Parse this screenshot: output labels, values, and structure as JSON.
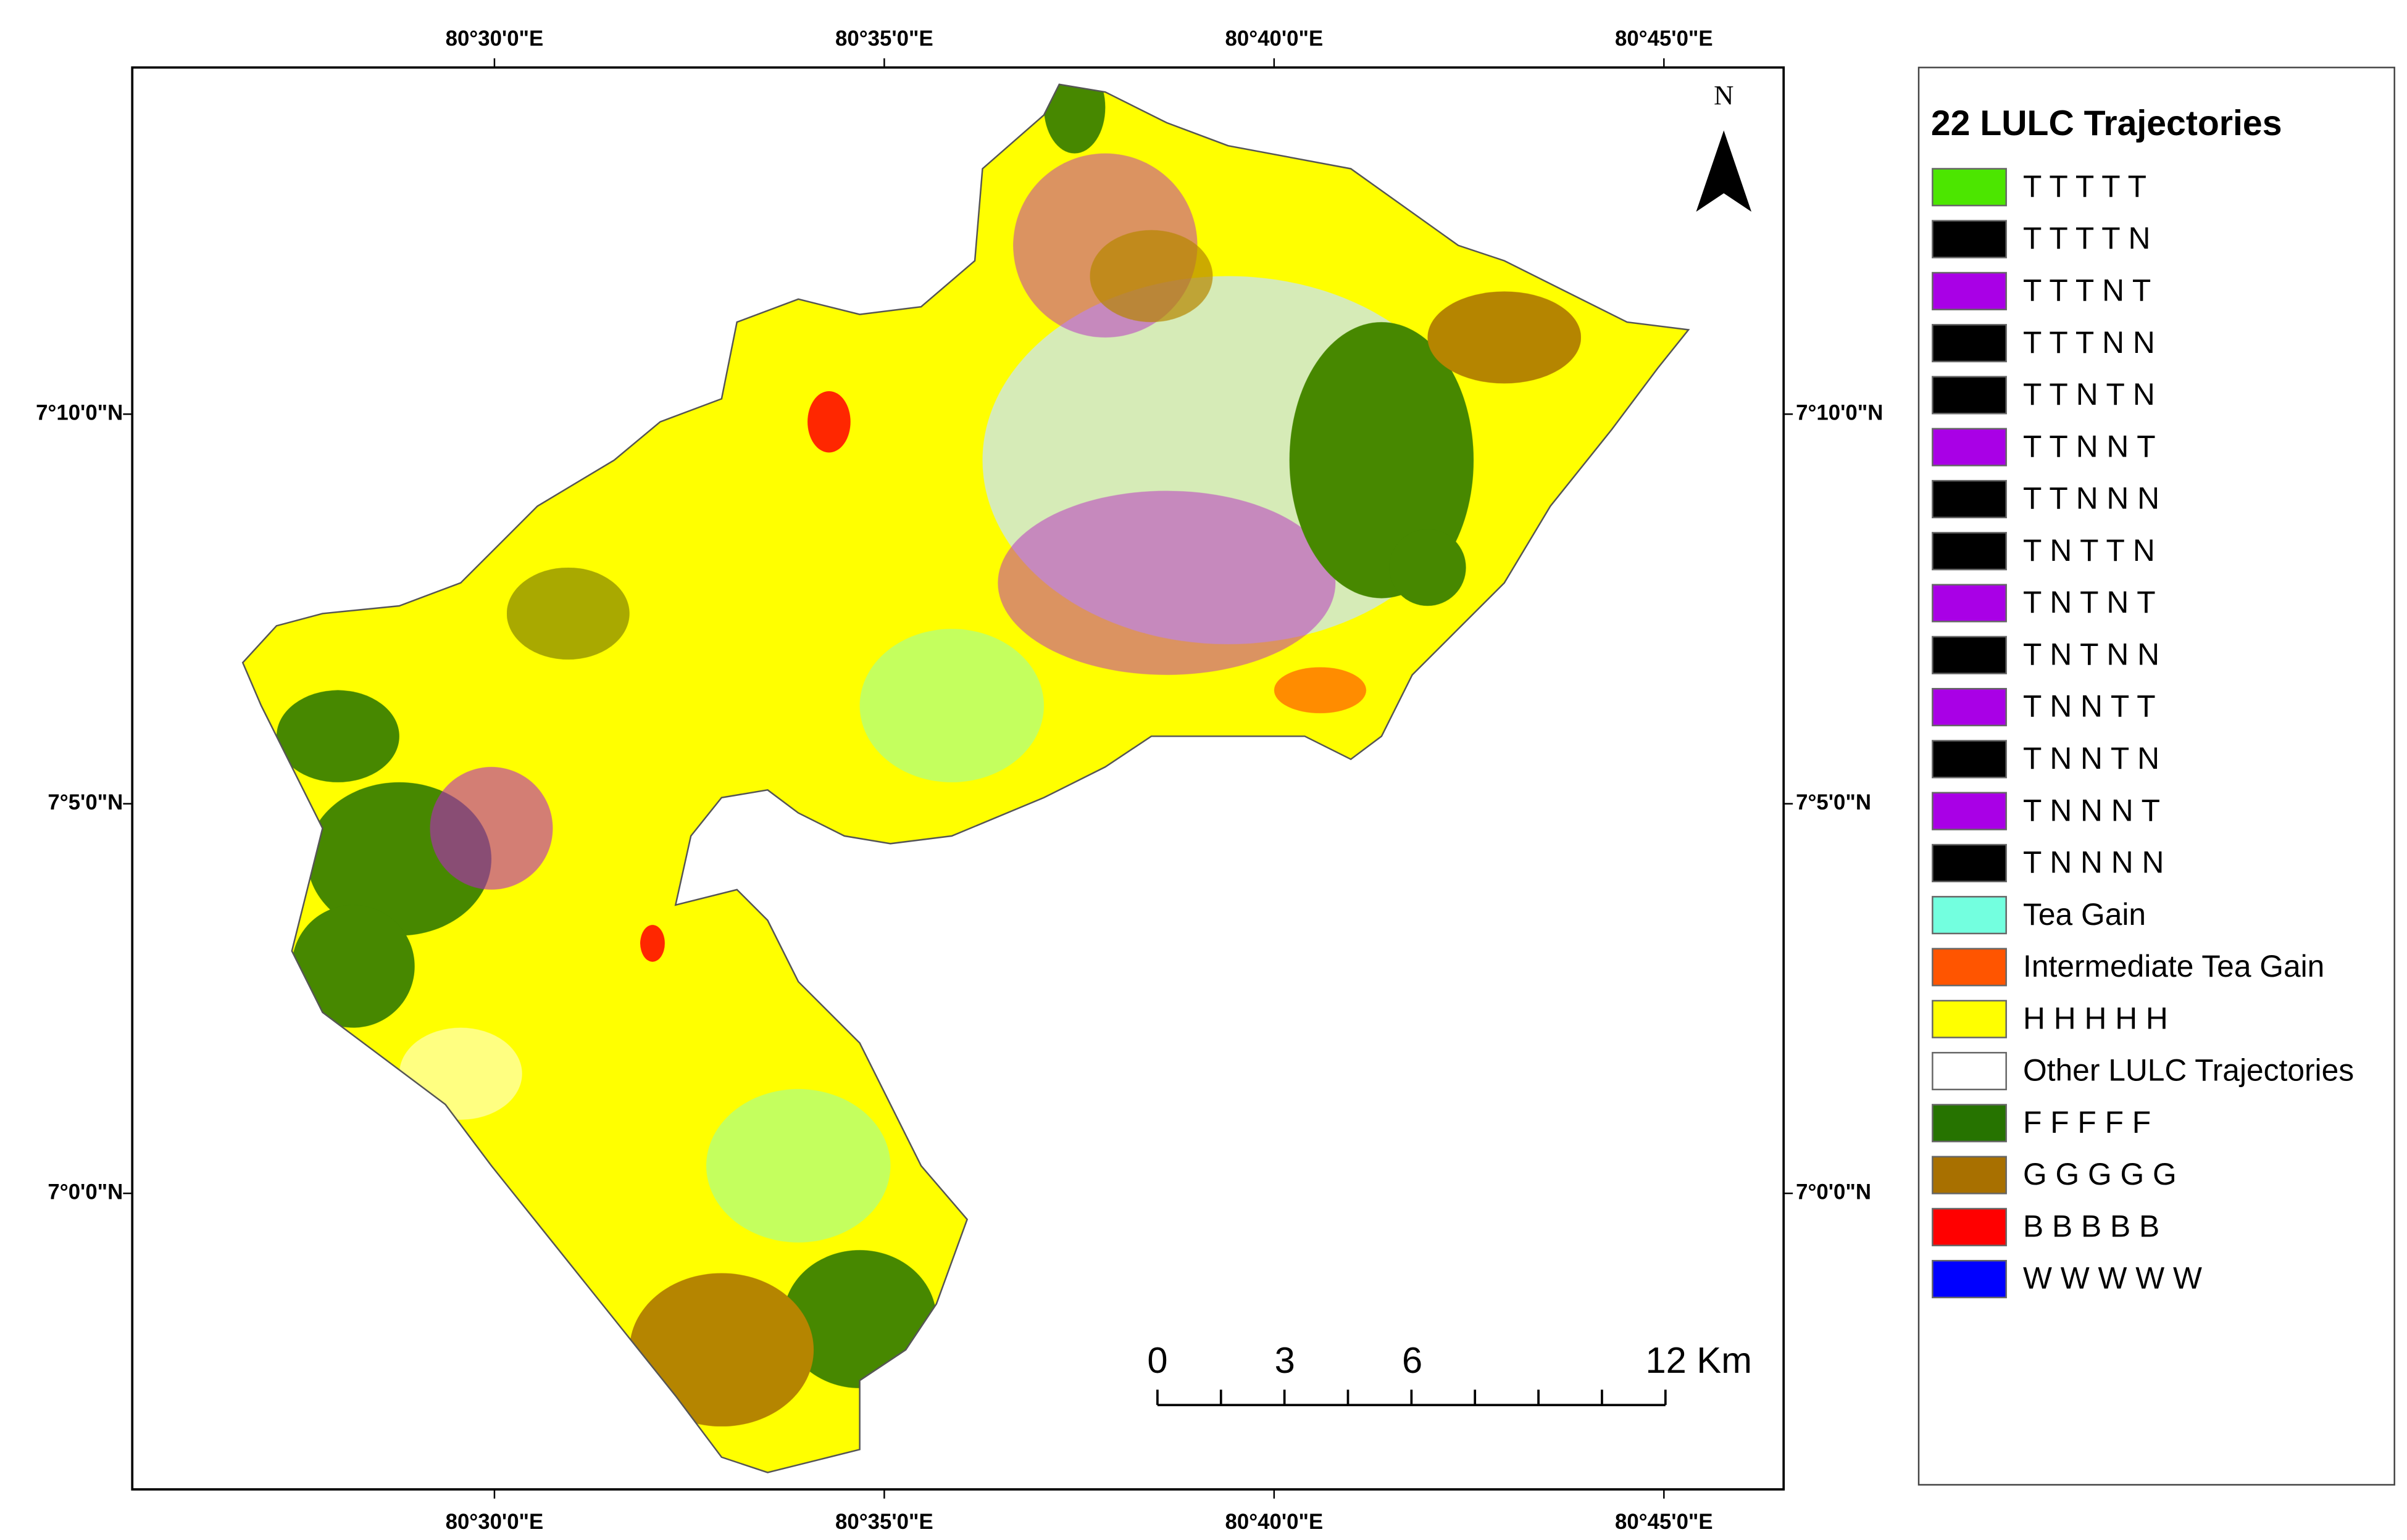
{
  "map": {
    "north": "N",
    "top_labels": [
      "80°30'0\"E",
      "80°35'0\"E",
      "80°40'0\"E",
      "80°45'0\"E"
    ],
    "bottom_labels": [
      "80°30'0\"E",
      "80°35'0\"E",
      "80°40'0\"E",
      "80°45'0\"E"
    ],
    "left_labels": [
      "7°10'0\"N",
      "7°5'0\"N",
      "7°0'0\"N"
    ],
    "right_labels": [
      "7°10'0\"N",
      "7°5'0\"N",
      "7°0'0\"N"
    ],
    "scale_bar": [
      "0",
      "3",
      "6",
      "12 Km"
    ]
  },
  "legend": {
    "title": "22 LULC Trajectories",
    "items": [
      {
        "label": "T T T T T",
        "color": "#4ce600"
      },
      {
        "label": "T T T T N",
        "color": "#000000"
      },
      {
        "label": "T T T N T",
        "color": "#a900e6"
      },
      {
        "label": "T T T N N",
        "color": "#000000"
      },
      {
        "label": "T T N T N",
        "color": "#000000"
      },
      {
        "label": "T T N N T",
        "color": "#a900e6"
      },
      {
        "label": "T T N N N",
        "color": "#000000"
      },
      {
        "label": "T N T T N",
        "color": "#000000"
      },
      {
        "label": "T N T N T",
        "color": "#a900e6"
      },
      {
        "label": "T N T N N",
        "color": "#000000"
      },
      {
        "label": "T N N T T",
        "color": "#a900e6"
      },
      {
        "label": "T N N T N",
        "color": "#000000"
      },
      {
        "label": "T N N N T",
        "color": "#a900e6"
      },
      {
        "label": "T N N N N",
        "color": "#000000"
      },
      {
        "label": "Tea Gain",
        "color": "#73ffdf"
      },
      {
        "label": "Intermediate Tea Gain",
        "color": "#ff5500"
      },
      {
        "label": "H H H H H",
        "color": "#ffff00"
      },
      {
        "label": "Other LULC Trajectories",
        "color": "#ffffff"
      },
      {
        "label": "F F F F F",
        "color": "#267300"
      },
      {
        "label": "G G G G G",
        "color": "#a87000"
      },
      {
        "label": "B B B B B",
        "color": "#ff0000"
      },
      {
        "label": "W W W W W",
        "color": "#0000ff"
      }
    ]
  }
}
